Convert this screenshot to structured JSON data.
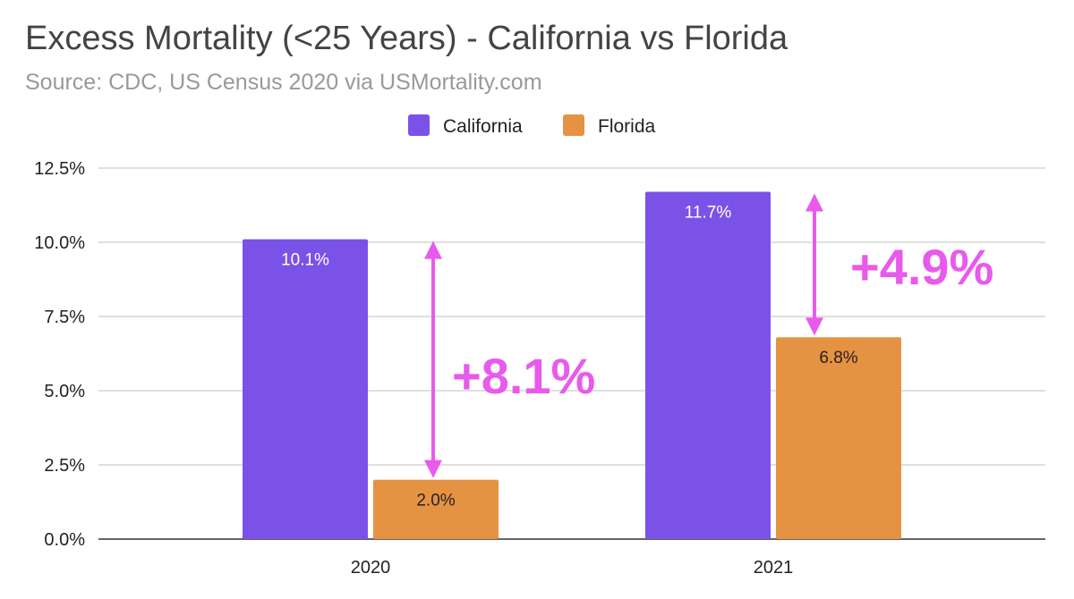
{
  "chart_data": {
    "type": "bar",
    "title": "Excess Mortality (<25 Years) - California vs Florida",
    "subtitle": "Source: CDC, US Census 2020 via USMortality.com",
    "categories": [
      "2020",
      "2021"
    ],
    "series": [
      {
        "name": "California",
        "color": "#7a52e8",
        "values": [
          10.1,
          11.7
        ],
        "labels": [
          "10.1%",
          "11.7%"
        ],
        "label_color": "#ffffff"
      },
      {
        "name": "Florida",
        "color": "#e69243",
        "values": [
          2.0,
          6.8
        ],
        "labels": [
          "2.0%",
          "6.8%"
        ],
        "label_color": "#222222"
      }
    ],
    "ylim": [
      0,
      12.5
    ],
    "yticks": [
      {
        "value": 0,
        "label": "0.0%"
      },
      {
        "value": 2.5,
        "label": "2.5%"
      },
      {
        "value": 5,
        "label": "5.0%"
      },
      {
        "value": 7.5,
        "label": "7.5%"
      },
      {
        "value": 10,
        "label": "10.0%"
      },
      {
        "value": 12.5,
        "label": "12.5%"
      }
    ],
    "grid": true,
    "legend_position": "top-center",
    "annotations": [
      {
        "category": "2020",
        "from": 2.0,
        "to": 10.1,
        "text": "+8.1%",
        "color": "#e85aec"
      },
      {
        "category": "2021",
        "from": 6.8,
        "to": 11.7,
        "text": "+4.9%",
        "color": "#e85aec"
      }
    ]
  }
}
